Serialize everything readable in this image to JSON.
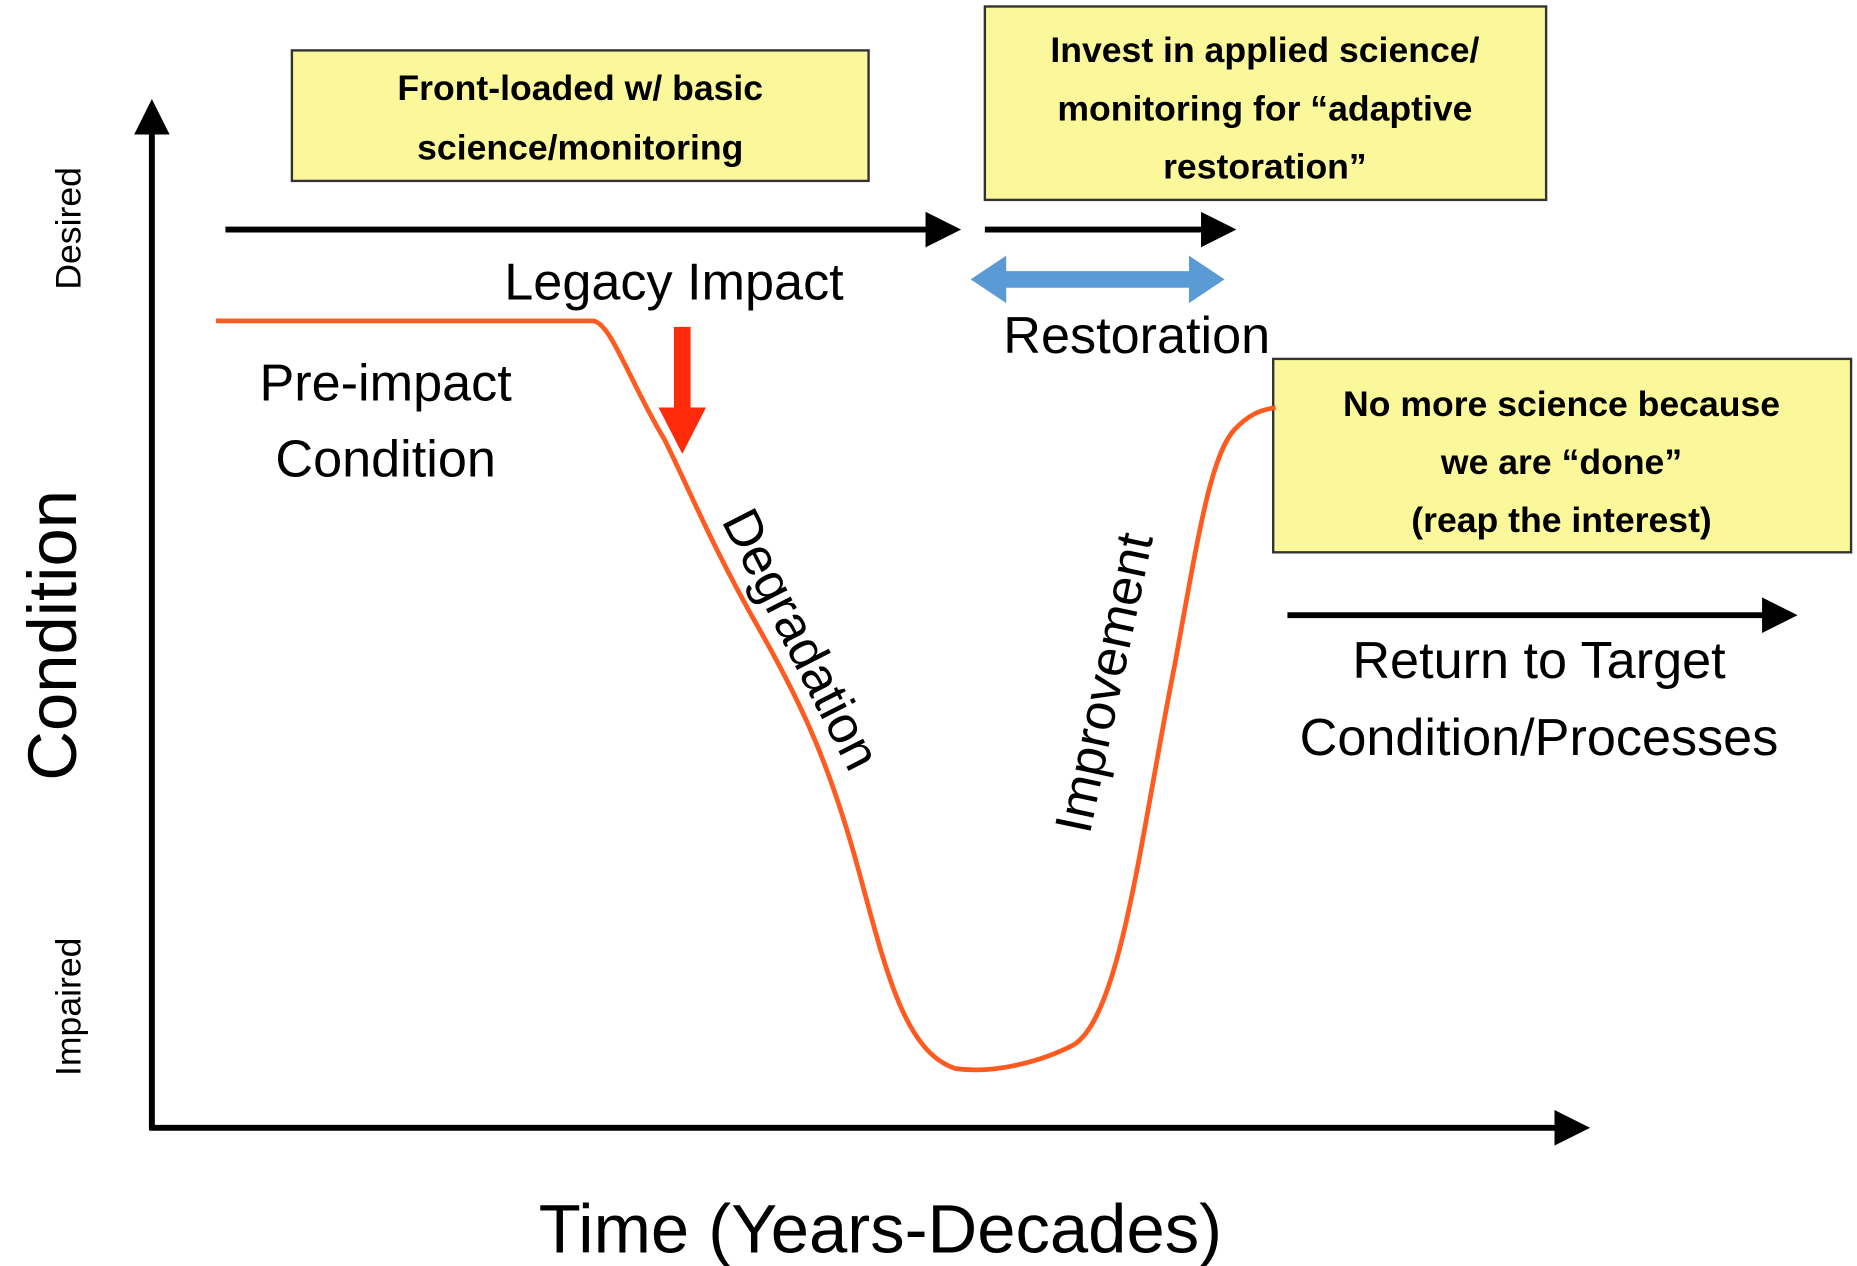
{
  "boxes": [
    {
      "lines": [
        "Front-loaded w/ basic",
        "science/monitoring"
      ]
    },
    {
      "lines": [
        "Invest in applied science/",
        "monitoring for “adaptive",
        "restoration”"
      ]
    },
    {
      "lines": [
        "No more science because",
        "we are “done”",
        "(reap the interest)"
      ]
    }
  ],
  "labels": {
    "legacy_impact": "Legacy Impact",
    "restoration": "Restoration",
    "pre_impact": [
      "Pre-impact",
      "Condition"
    ],
    "degradation": "Degradation",
    "improvement": "Improvement",
    "return_target": [
      "Return to Target",
      "Condition/Processes"
    ]
  },
  "axes": {
    "y_title": "Condition",
    "y_top": "Desired",
    "y_bottom": "Impaired",
    "x_title": "Time (Years-Decades)"
  }
}
